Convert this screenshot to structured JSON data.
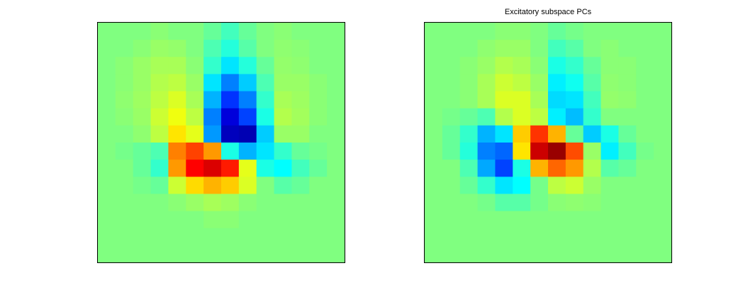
{
  "chart_data": [
    {
      "type": "heatmap",
      "title": "",
      "xlabel": "",
      "ylabel": "",
      "grid": false,
      "axes_ticks": false,
      "colormap": "jet",
      "clim": [
        -1,
        1
      ],
      "rows": 14,
      "cols": 14,
      "values": [
        [
          0.0,
          0.0,
          0.0,
          0.02,
          0.0,
          0.0,
          -0.05,
          -0.12,
          -0.05,
          0.0,
          0.02,
          0.0,
          0.0,
          0.0
        ],
        [
          0.0,
          0.0,
          0.02,
          0.05,
          0.04,
          0.0,
          -0.1,
          -0.18,
          -0.08,
          0.0,
          0.03,
          0.02,
          0.0,
          0.0
        ],
        [
          0.0,
          0.02,
          0.05,
          0.08,
          0.08,
          0.02,
          -0.15,
          -0.3,
          -0.18,
          -0.05,
          0.04,
          0.03,
          0.0,
          0.0
        ],
        [
          0.0,
          0.02,
          0.05,
          0.1,
          0.12,
          0.05,
          -0.3,
          -0.5,
          -0.35,
          -0.1,
          0.05,
          0.05,
          0.02,
          0.0
        ],
        [
          0.0,
          0.03,
          0.06,
          0.12,
          0.18,
          0.08,
          -0.4,
          -0.65,
          -0.5,
          -0.15,
          0.08,
          0.06,
          0.02,
          0.0
        ],
        [
          0.0,
          0.02,
          0.05,
          0.15,
          0.22,
          0.12,
          -0.5,
          -0.82,
          -0.62,
          -0.2,
          0.1,
          0.07,
          0.02,
          0.0
        ],
        [
          0.0,
          0.0,
          0.03,
          0.12,
          0.3,
          0.2,
          -0.45,
          -0.88,
          -0.9,
          -0.35,
          0.05,
          0.05,
          0.0,
          0.0
        ],
        [
          0.0,
          -0.02,
          -0.05,
          -0.1,
          0.5,
          0.62,
          0.45,
          -0.2,
          -0.4,
          -0.3,
          -0.15,
          -0.05,
          -0.02,
          0.0
        ],
        [
          0.0,
          0.0,
          -0.05,
          -0.15,
          0.45,
          0.75,
          0.82,
          0.7,
          0.2,
          -0.2,
          -0.25,
          -0.12,
          -0.05,
          0.0
        ],
        [
          0.0,
          0.0,
          -0.02,
          -0.05,
          0.15,
          0.32,
          0.4,
          0.35,
          0.18,
          0.0,
          -0.08,
          -0.05,
          0.0,
          0.0
        ],
        [
          0.0,
          0.0,
          0.0,
          0.0,
          0.02,
          0.05,
          0.08,
          0.06,
          0.02,
          0.0,
          0.0,
          0.0,
          0.0,
          0.0
        ],
        [
          0.0,
          0.0,
          0.0,
          0.0,
          0.0,
          0.0,
          0.02,
          0.02,
          0.0,
          0.0,
          0.0,
          0.0,
          0.0,
          0.0
        ],
        [
          0.0,
          0.0,
          0.0,
          0.0,
          0.0,
          0.0,
          0.0,
          0.0,
          0.0,
          0.0,
          0.0,
          0.0,
          0.0,
          0.0
        ],
        [
          0.0,
          0.0,
          0.0,
          0.0,
          0.0,
          0.0,
          0.0,
          0.0,
          0.0,
          0.0,
          0.0,
          0.0,
          0.0,
          0.0
        ]
      ]
    },
    {
      "type": "heatmap",
      "title": "Excitatory subspace PCs",
      "xlabel": "",
      "ylabel": "",
      "grid": false,
      "axes_ticks": false,
      "colormap": "jet",
      "clim": [
        -1,
        1
      ],
      "rows": 14,
      "cols": 14,
      "values": [
        [
          0.0,
          0.0,
          0.0,
          0.0,
          0.02,
          0.02,
          0.0,
          -0.05,
          -0.02,
          0.0,
          0.0,
          0.0,
          0.0,
          0.0
        ],
        [
          0.0,
          0.0,
          0.0,
          0.03,
          0.05,
          0.05,
          0.0,
          -0.12,
          -0.08,
          0.0,
          0.02,
          0.0,
          0.0,
          0.0
        ],
        [
          0.0,
          0.0,
          0.02,
          0.05,
          0.1,
          0.08,
          0.02,
          -0.2,
          -0.15,
          -0.05,
          0.02,
          0.02,
          0.0,
          0.0
        ],
        [
          0.0,
          0.0,
          0.02,
          0.08,
          0.15,
          0.12,
          0.05,
          -0.28,
          -0.22,
          -0.08,
          0.03,
          0.02,
          0.0,
          0.0
        ],
        [
          0.0,
          0.0,
          0.02,
          0.08,
          0.18,
          0.18,
          0.08,
          -0.32,
          -0.3,
          -0.12,
          0.04,
          0.03,
          0.0,
          0.0
        ],
        [
          0.0,
          -0.02,
          -0.05,
          -0.1,
          0.1,
          0.18,
          0.12,
          -0.28,
          -0.38,
          -0.15,
          0.0,
          0.0,
          0.0,
          0.0
        ],
        [
          0.0,
          -0.05,
          -0.15,
          -0.4,
          -0.3,
          0.35,
          0.65,
          0.4,
          -0.05,
          -0.35,
          -0.2,
          -0.05,
          0.0,
          0.0
        ],
        [
          0.0,
          -0.05,
          -0.18,
          -0.5,
          -0.55,
          0.3,
          0.85,
          0.95,
          0.6,
          0.05,
          -0.28,
          -0.12,
          -0.02,
          0.0
        ],
        [
          0.0,
          0.0,
          -0.1,
          -0.42,
          -0.62,
          -0.2,
          0.4,
          0.55,
          0.45,
          0.1,
          -0.08,
          -0.05,
          0.0,
          0.0
        ],
        [
          0.0,
          0.0,
          -0.05,
          -0.15,
          -0.3,
          -0.25,
          -0.02,
          0.12,
          0.15,
          0.05,
          0.0,
          0.0,
          0.0,
          0.0
        ],
        [
          0.0,
          0.0,
          0.0,
          -0.02,
          -0.08,
          -0.08,
          -0.02,
          0.02,
          0.03,
          0.02,
          0.0,
          0.0,
          0.0,
          0.0
        ],
        [
          0.0,
          0.0,
          0.0,
          0.0,
          0.0,
          0.0,
          0.0,
          0.0,
          0.0,
          0.0,
          0.0,
          0.0,
          0.0,
          0.0
        ],
        [
          0.0,
          0.0,
          0.0,
          0.0,
          0.0,
          0.0,
          0.0,
          0.0,
          0.0,
          0.0,
          0.0,
          0.0,
          0.0,
          0.0
        ],
        [
          0.0,
          0.0,
          0.0,
          0.0,
          0.0,
          0.0,
          0.0,
          0.0,
          0.0,
          0.0,
          0.0,
          0.0,
          0.0,
          0.0
        ]
      ]
    }
  ]
}
